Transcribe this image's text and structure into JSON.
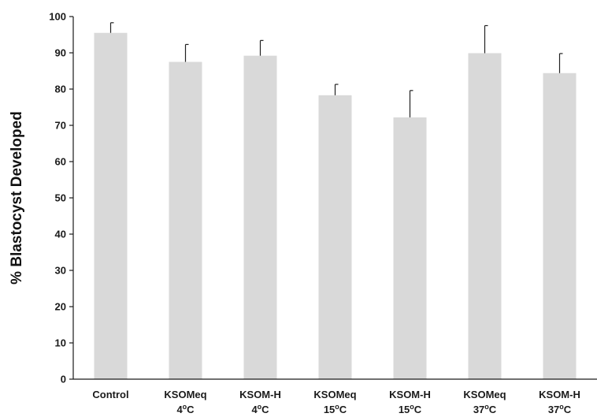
{
  "chart_data": {
    "type": "bar",
    "ylabel": "% Blastocyst Developed",
    "xlabel": "",
    "title": "",
    "ylim": [
      0,
      100
    ],
    "yticks": [
      0,
      10,
      20,
      30,
      40,
      50,
      60,
      70,
      80,
      90,
      100
    ],
    "grid": false,
    "bar_color": "#d9d9d9",
    "categories": [
      {
        "line1": "Control",
        "line2": "",
        "sup": "",
        "unit": ""
      },
      {
        "line1": "KSOMeq",
        "line2": "4",
        "sup": "o",
        "unit": "C"
      },
      {
        "line1": "KSOM-H",
        "line2": "4",
        "sup": "o",
        "unit": "C"
      },
      {
        "line1": "KSOMeq",
        "line2": "15",
        "sup": "o",
        "unit": "C"
      },
      {
        "line1": "KSOM-H",
        "line2": "15",
        "sup": "o",
        "unit": "C"
      },
      {
        "line1": "KSOMeq",
        "line2": "37",
        "sup": "o",
        "unit": "C"
      },
      {
        "line1": "KSOM-H",
        "line2": "37",
        "sup": "o",
        "unit": "C"
      }
    ],
    "values": [
      95.5,
      87.5,
      89.2,
      78.3,
      72.2,
      89.9,
      84.4
    ],
    "errors": [
      2.8,
      4.8,
      4.2,
      3.0,
      7.4,
      7.6,
      5.4
    ]
  }
}
